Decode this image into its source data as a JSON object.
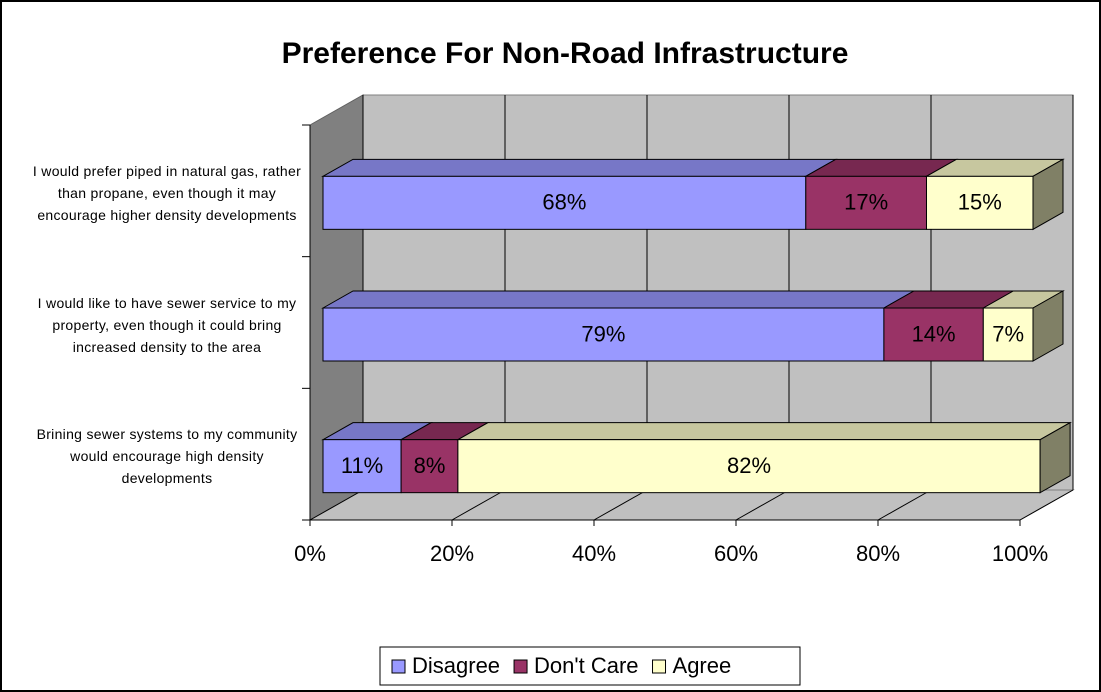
{
  "chart_data": {
    "type": "bar3d_stacked_horizontal",
    "title": "Preference For Non-Road Infrastructure",
    "categories": [
      "I would prefer piped in natural gas, rather than propane, even though it may encourage higher density developments",
      "I would like to have sewer service to my property, even though it could bring increased density to the area",
      "Brining sewer systems to my community would encourage high density developments"
    ],
    "series": [
      {
        "name": "Disagree",
        "color": "#9999ff",
        "values": [
          68,
          79,
          11
        ],
        "value_labels": [
          "68%",
          "79%",
          "11%"
        ]
      },
      {
        "name": "Don't Care",
        "color": "#993366",
        "values": [
          17,
          14,
          8
        ],
        "value_labels": [
          "17%",
          "14%",
          "8%"
        ]
      },
      {
        "name": "Agree",
        "color": "#ffffcc",
        "values": [
          15,
          7,
          82
        ],
        "value_labels": [
          "15%",
          "7%",
          "82%"
        ]
      }
    ],
    "xlim": [
      0,
      100
    ],
    "xticks": [
      {
        "value": 0,
        "label": "0%"
      },
      {
        "value": 20,
        "label": "20%"
      },
      {
        "value": 40,
        "label": "40%"
      },
      {
        "value": 60,
        "label": "60%"
      },
      {
        "value": 80,
        "label": "80%"
      },
      {
        "value": 100,
        "label": "100%"
      }
    ],
    "grid": true,
    "legend": "bottom"
  }
}
